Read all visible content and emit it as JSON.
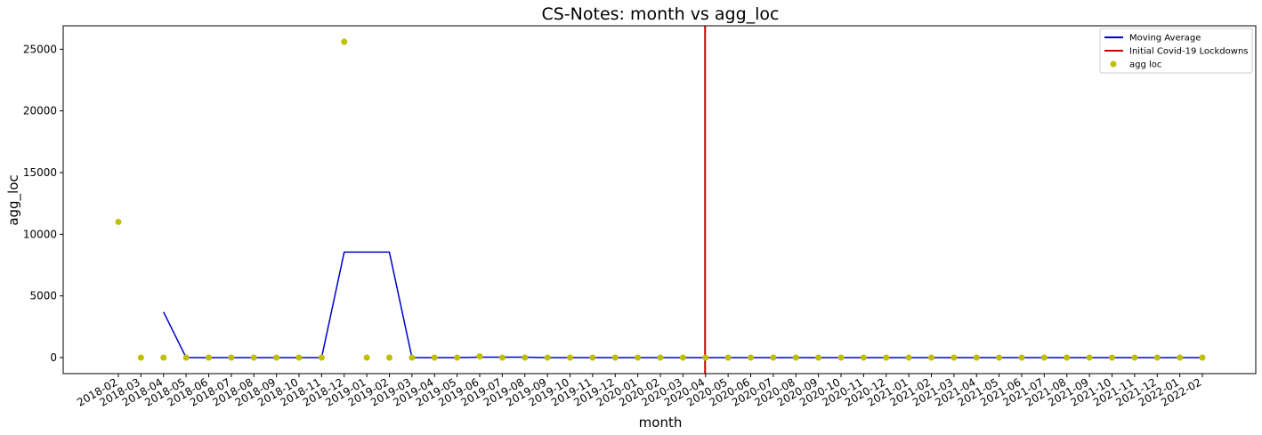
{
  "chart_data": {
    "type": "scatter",
    "title": "CS-Notes: month vs agg_loc",
    "xlabel": "month",
    "ylabel": "agg_loc",
    "ylim": [
      -1300,
      26900
    ],
    "yticks": [
      0,
      5000,
      10000,
      15000,
      20000,
      25000
    ],
    "categories": [
      "2018-02",
      "2018-03",
      "2018-04",
      "2018-05",
      "2018-06",
      "2018-07",
      "2018-08",
      "2018-09",
      "2018-10",
      "2018-11",
      "2018-12",
      "2019-01",
      "2019-02",
      "2019-03",
      "2019-04",
      "2019-05",
      "2019-06",
      "2019-07",
      "2019-08",
      "2019-09",
      "2019-10",
      "2019-11",
      "2019-12",
      "2020-01",
      "2020-02",
      "2020-03",
      "2020-04",
      "2020-05",
      "2020-06",
      "2020-07",
      "2020-08",
      "2020-09",
      "2020-10",
      "2020-11",
      "2020-12",
      "2021-01",
      "2021-02",
      "2021-03",
      "2021-04",
      "2021-05",
      "2021-06",
      "2021-07",
      "2021-08",
      "2021-09",
      "2021-10",
      "2021-11",
      "2021-12",
      "2022-01",
      "2022-02"
    ],
    "series": [
      {
        "name": "agg loc",
        "kind": "scatter",
        "color": "#bfbf00",
        "values": [
          11000,
          0,
          0,
          0,
          0,
          0,
          0,
          0,
          0,
          0,
          25600,
          0,
          0,
          0,
          0,
          0,
          100,
          0,
          0,
          0,
          0,
          0,
          0,
          0,
          0,
          0,
          0,
          0,
          0,
          0,
          0,
          0,
          0,
          0,
          0,
          0,
          0,
          0,
          0,
          0,
          0,
          0,
          0,
          0,
          0,
          0,
          0,
          0,
          0
        ]
      },
      {
        "name": "Moving Average",
        "kind": "line",
        "color": "#0000cd",
        "values": [
          null,
          null,
          3700,
          0,
          0,
          0,
          0,
          0,
          0,
          0,
          8550,
          8550,
          8550,
          0,
          0,
          0,
          30,
          30,
          30,
          0,
          0,
          0,
          0,
          0,
          0,
          0,
          0,
          0,
          0,
          0,
          0,
          0,
          0,
          0,
          0,
          0,
          0,
          0,
          0,
          0,
          0,
          0,
          0,
          0,
          0,
          0,
          0,
          0,
          0
        ]
      }
    ],
    "vline": {
      "name": "Initial Covid-19 Lockdowns",
      "x": "2020-03",
      "offset": 0.98,
      "color": "#cc0000"
    },
    "legend": {
      "position": "top-right",
      "entries": [
        {
          "label": "Moving Average",
          "kind": "line",
          "color": "#0000cd"
        },
        {
          "label": "Initial Covid-19 Lockdowns",
          "kind": "line",
          "color": "#cc0000"
        },
        {
          "label": "agg loc",
          "kind": "dot",
          "color": "#bfbf00"
        }
      ]
    }
  }
}
